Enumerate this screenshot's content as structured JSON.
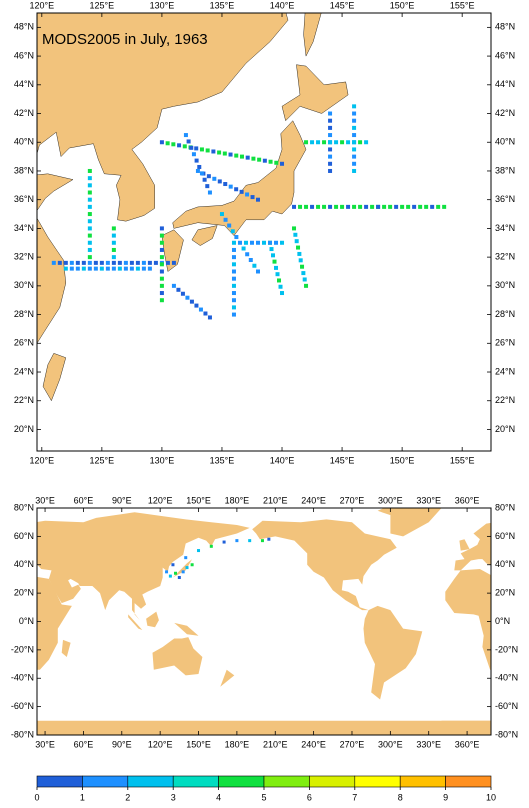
{
  "map1": {
    "title": "MODS2005 in July, 1963",
    "xlim": [
      119.6,
      157.4
    ],
    "ylim": [
      18.5,
      49
    ],
    "xticks": [
      {
        "value": 120,
        "label": "120°E"
      },
      {
        "value": 125,
        "label": "125°E"
      },
      {
        "value": 130,
        "label": "130°E"
      },
      {
        "value": 135,
        "label": "135°E"
      },
      {
        "value": 140,
        "label": "140°E"
      },
      {
        "value": 145,
        "label": "145°E"
      },
      {
        "value": 150,
        "label": "150°E"
      },
      {
        "value": 155,
        "label": "155°E"
      }
    ],
    "yticks": [
      {
        "value": 20,
        "label": "20°N"
      },
      {
        "value": 22,
        "label": "22°N"
      },
      {
        "value": 24,
        "label": "24°N"
      },
      {
        "value": 26,
        "label": "26°N"
      },
      {
        "value": 28,
        "label": "28°N"
      },
      {
        "value": 30,
        "label": "30°N"
      },
      {
        "value": 32,
        "label": "32°N"
      },
      {
        "value": 34,
        "label": "34°N"
      },
      {
        "value": 36,
        "label": "36°N"
      },
      {
        "value": 38,
        "label": "38°N"
      },
      {
        "value": 40,
        "label": "40°N"
      },
      {
        "value": 42,
        "label": "42°N"
      },
      {
        "value": 44,
        "label": "44°N"
      },
      {
        "value": 46,
        "label": "46°N"
      },
      {
        "value": 48,
        "label": "48°N"
      }
    ]
  },
  "map2": {
    "xlim": [
      23.7,
      378.7
    ],
    "ylim": [
      -80,
      80
    ],
    "xticks": [
      {
        "value": 30,
        "label": "30°E"
      },
      {
        "value": 60,
        "label": "60°E"
      },
      {
        "value": 90,
        "label": "90°E"
      },
      {
        "value": 120,
        "label": "120°E"
      },
      {
        "value": 150,
        "label": "150°E"
      },
      {
        "value": 180,
        "label": "180°E"
      },
      {
        "value": 210,
        "label": "210°E"
      },
      {
        "value": 240,
        "label": "240°E"
      },
      {
        "value": 270,
        "label": "270°E"
      },
      {
        "value": 300,
        "label": "300°E"
      },
      {
        "value": 330,
        "label": "330°E"
      },
      {
        "value": 360,
        "label": "360°E"
      }
    ],
    "yticks": [
      {
        "value": -80,
        "label": "-80°N"
      },
      {
        "value": -60,
        "label": "-60°N"
      },
      {
        "value": -40,
        "label": "-40°N"
      },
      {
        "value": -20,
        "label": "-20°N"
      },
      {
        "value": 0,
        "label": "0°N"
      },
      {
        "value": 20,
        "label": "20°N"
      },
      {
        "value": 40,
        "label": "40°N"
      },
      {
        "value": 60,
        "label": "60°N"
      },
      {
        "value": 80,
        "label": "80°N"
      }
    ]
  },
  "colorbar": {
    "ticks": [
      0,
      1,
      2,
      3,
      4,
      5,
      6,
      7,
      8,
      9,
      10
    ],
    "colors": [
      "#1f5fd8",
      "#1e90ff",
      "#00c0ee",
      "#00dcc0",
      "#10e040",
      "#80ee10",
      "#d8f000",
      "#ffff00",
      "#ffc000",
      "#ff9020"
    ]
  }
}
